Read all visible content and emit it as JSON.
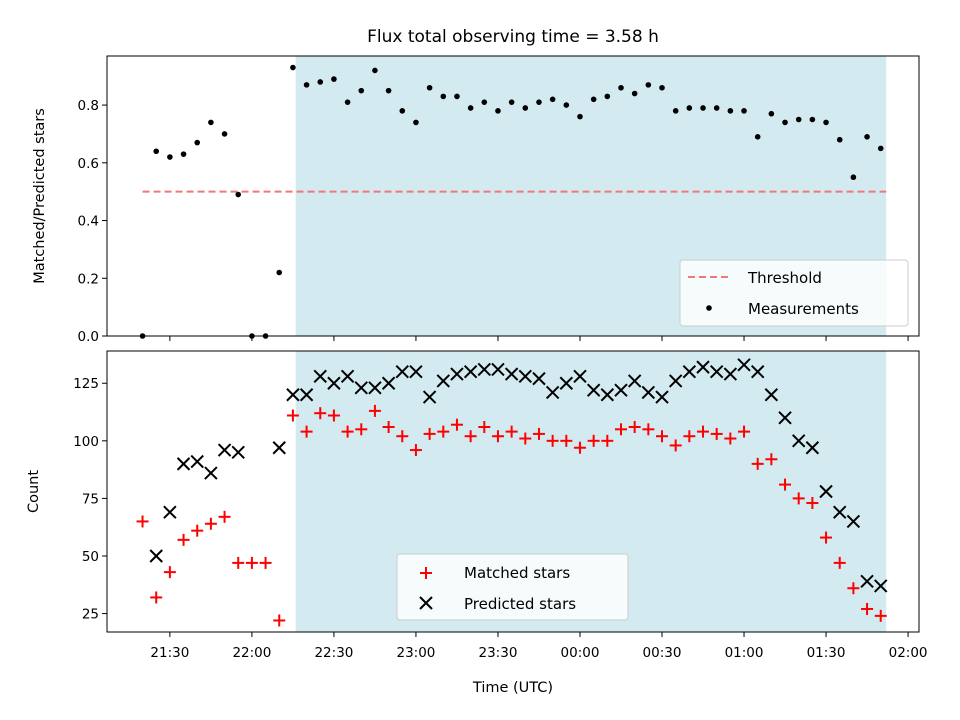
{
  "title": "Flux total observing time = 3.58 h",
  "colors": {
    "observing_band": "#d3eaf0",
    "threshold": "#f07878",
    "measurements": "#000000",
    "matched": "#ff0000",
    "predicted": "#000000"
  },
  "chart_data": [
    {
      "type": "scatter",
      "panel": "top",
      "ylabel": "Matched/Predicted stars",
      "ylim": [
        0,
        0.97
      ],
      "yticks": [
        0.0,
        0.2,
        0.4,
        0.6,
        0.8
      ],
      "ytick_labels": [
        "0.0",
        "0.2",
        "0.4",
        "0.6",
        "0.8"
      ],
      "legend_position": "lower right",
      "observing_band": {
        "start": "22:16",
        "end": "01:52"
      },
      "threshold": {
        "name": "Threshold",
        "value": 0.5,
        "x_start": "21:20",
        "x_end": "01:52"
      },
      "series": [
        {
          "name": "Measurements",
          "x": [
            "21:20",
            "21:25",
            "21:30",
            "21:35",
            "21:40",
            "21:45",
            "21:50",
            "21:55",
            "22:00",
            "22:05",
            "22:10",
            "22:15",
            "22:20",
            "22:25",
            "22:30",
            "22:35",
            "22:40",
            "22:45",
            "22:50",
            "22:55",
            "23:00",
            "23:05",
            "23:10",
            "23:15",
            "23:20",
            "23:25",
            "23:30",
            "23:35",
            "23:40",
            "23:45",
            "23:50",
            "23:55",
            "00:00",
            "00:05",
            "00:10",
            "00:15",
            "00:20",
            "00:25",
            "00:30",
            "00:35",
            "00:40",
            "00:45",
            "00:50",
            "00:55",
            "01:00",
            "01:05",
            "01:10",
            "01:15",
            "01:20",
            "01:25",
            "01:30",
            "01:35",
            "01:40",
            "01:45",
            "01:50"
          ],
          "values": [
            0.0,
            0.64,
            0.62,
            0.63,
            0.67,
            0.74,
            0.7,
            0.49,
            0.0,
            0.0,
            0.22,
            0.93,
            0.87,
            0.88,
            0.89,
            0.81,
            0.85,
            0.92,
            0.85,
            0.78,
            0.74,
            0.86,
            0.83,
            0.83,
            0.79,
            0.81,
            0.78,
            0.81,
            0.79,
            0.81,
            0.82,
            0.8,
            0.76,
            0.82,
            0.83,
            0.86,
            0.84,
            0.87,
            0.86,
            0.78,
            0.79,
            0.79,
            0.79,
            0.78,
            0.78,
            0.69,
            0.77,
            0.74,
            0.75,
            0.75,
            0.74,
            0.68,
            0.55,
            0.69,
            0.65
          ]
        }
      ]
    },
    {
      "type": "scatter",
      "panel": "bottom",
      "xlabel": "Time (UTC)",
      "ylabel": "Count",
      "ylim": [
        17,
        139
      ],
      "yticks": [
        25,
        50,
        75,
        100,
        125
      ],
      "ytick_labels": [
        "25",
        "50",
        "75",
        "100",
        "125"
      ],
      "xlim": [
        "21:07",
        "02:04"
      ],
      "xticks": [
        "21:30",
        "22:00",
        "22:30",
        "23:00",
        "23:30",
        "00:00",
        "00:30",
        "01:00",
        "01:30",
        "02:00"
      ],
      "xtick_labels": [
        "21:30",
        "22:00",
        "22:30",
        "23:00",
        "23:30",
        "00:00",
        "00:30",
        "01:00",
        "01:30",
        "02:00"
      ],
      "legend_position": "lower center",
      "observing_band": {
        "start": "22:16",
        "end": "01:52"
      },
      "series": [
        {
          "name": "Matched stars",
          "marker": "plus",
          "x": [
            "21:20",
            "21:25",
            "21:30",
            "21:35",
            "21:40",
            "21:45",
            "21:50",
            "21:55",
            "22:00",
            "22:05",
            "22:10",
            "22:15",
            "22:20",
            "22:25",
            "22:30",
            "22:35",
            "22:40",
            "22:45",
            "22:50",
            "22:55",
            "23:00",
            "23:05",
            "23:10",
            "23:15",
            "23:20",
            "23:25",
            "23:30",
            "23:35",
            "23:40",
            "23:45",
            "23:50",
            "23:55",
            "00:00",
            "00:05",
            "00:10",
            "00:15",
            "00:20",
            "00:25",
            "00:30",
            "00:35",
            "00:40",
            "00:45",
            "00:50",
            "00:55",
            "01:00",
            "01:05",
            "01:10",
            "01:15",
            "01:20",
            "01:25",
            "01:30",
            "01:35",
            "01:40",
            "01:45",
            "01:50"
          ],
          "values": [
            65,
            32,
            43,
            57,
            61,
            64,
            67,
            47,
            47,
            47,
            22,
            111,
            104,
            112,
            111,
            104,
            105,
            113,
            106,
            102,
            96,
            103,
            104,
            107,
            102,
            106,
            102,
            104,
            101,
            103,
            100,
            100,
            97,
            100,
            100,
            105,
            106,
            105,
            102,
            98,
            102,
            104,
            103,
            101,
            104,
            90,
            92,
            81,
            75,
            73,
            58,
            47,
            36,
            27,
            24
          ]
        },
        {
          "name": "Predicted stars",
          "marker": "x",
          "x": [
            "21:25",
            "21:30",
            "21:35",
            "21:40",
            "21:45",
            "21:50",
            "21:55",
            "22:10",
            "22:15",
            "22:20",
            "22:25",
            "22:30",
            "22:35",
            "22:40",
            "22:45",
            "22:50",
            "22:55",
            "23:00",
            "23:05",
            "23:10",
            "23:15",
            "23:20",
            "23:25",
            "23:30",
            "23:35",
            "23:40",
            "23:45",
            "23:50",
            "23:55",
            "00:00",
            "00:05",
            "00:10",
            "00:15",
            "00:20",
            "00:25",
            "00:30",
            "00:35",
            "00:40",
            "00:45",
            "00:50",
            "00:55",
            "01:00",
            "01:05",
            "01:10",
            "01:15",
            "01:20",
            "01:25",
            "01:30",
            "01:35",
            "01:40",
            "01:45",
            "01:50"
          ],
          "values": [
            50,
            69,
            90,
            91,
            86,
            96,
            95,
            97,
            120,
            120,
            128,
            125,
            128,
            123,
            123,
            125,
            130,
            130,
            119,
            126,
            129,
            130,
            131,
            131,
            129,
            128,
            127,
            121,
            125,
            128,
            122,
            120,
            122,
            126,
            121,
            119,
            126,
            130,
            132,
            130,
            129,
            133,
            130,
            120,
            110,
            100,
            97,
            78,
            69,
            65,
            39,
            37
          ]
        }
      ]
    }
  ]
}
